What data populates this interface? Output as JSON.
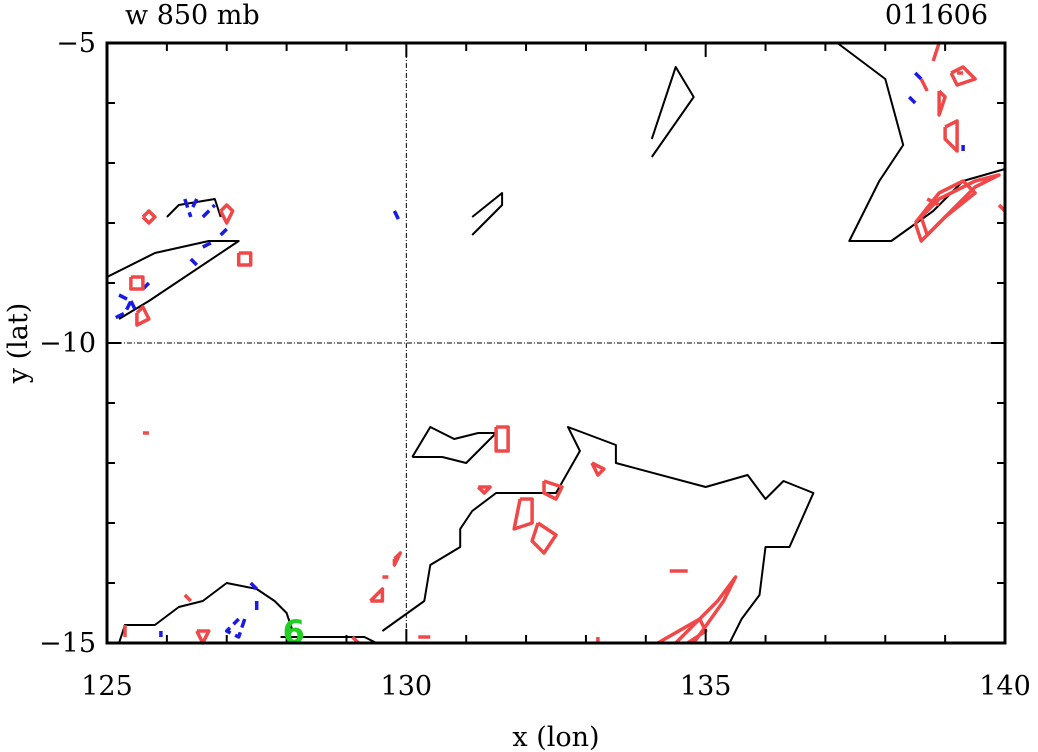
{
  "chart_data": {
    "type": "contour",
    "title_left": "w 850 mb",
    "title_right": "011606",
    "xlabel": "x (lon)",
    "ylabel": "y (lat)",
    "xlim": [
      125,
      140
    ],
    "ylim": [
      -15,
      -5
    ],
    "x_ticks": [
      125,
      130,
      135,
      140
    ],
    "y_ticks": [
      -5,
      -10,
      -15
    ],
    "x_tick_labels": [
      "125",
      "130",
      "135",
      "140"
    ],
    "y_tick_labels": [
      "−5",
      "−10",
      "−15"
    ],
    "reference_lines": {
      "lon": 130,
      "lat": -10
    },
    "colors": {
      "positive": "#f04848",
      "negative": "#1a1ae6",
      "land": "#000000",
      "marker": "#22d022"
    },
    "marker": {
      "label": "6",
      "lon": 128.1,
      "lat": -14.8
    },
    "coastlines": [
      [
        [
          137.2,
          -5
        ],
        [
          138,
          -5.6
        ],
        [
          138.3,
          -6.7
        ],
        [
          137.9,
          -7.3
        ],
        [
          137.4,
          -8.3
        ],
        [
          138.1,
          -8.3
        ],
        [
          138.8,
          -7.8
        ],
        [
          139.3,
          -7.3
        ],
        [
          140,
          -7.1
        ]
      ],
      [
        [
          134.1,
          -6.6
        ],
        [
          134.5,
          -5.4
        ],
        [
          134.8,
          -5.9
        ],
        [
          134.1,
          -6.9
        ]
      ],
      [
        [
          131.1,
          -7.9
        ],
        [
          131.6,
          -7.5
        ],
        [
          131.6,
          -7.7
        ],
        [
          131.1,
          -8.2
        ]
      ],
      [
        [
          125,
          -8.9
        ],
        [
          125.8,
          -8.5
        ],
        [
          126.7,
          -8.3
        ],
        [
          127.2,
          -8.3
        ],
        [
          125.7,
          -9.3
        ],
        [
          125.2,
          -9.6
        ]
      ],
      [
        [
          126,
          -7.9
        ],
        [
          126.2,
          -7.7
        ],
        [
          126.8,
          -7.6
        ],
        [
          126.9,
          -7.9
        ]
      ],
      [
        [
          130.1,
          -11.9
        ],
        [
          130.4,
          -11.4
        ],
        [
          130.8,
          -11.6
        ],
        [
          131.2,
          -11.5
        ],
        [
          131.5,
          -11.5
        ],
        [
          131.0,
          -12.0
        ],
        [
          130.6,
          -11.9
        ],
        [
          130.1,
          -11.9
        ]
      ],
      [
        [
          129.6,
          -14.8
        ],
        [
          130.3,
          -14.3
        ],
        [
          130.4,
          -13.7
        ],
        [
          130.9,
          -13.4
        ],
        [
          130.9,
          -13.1
        ],
        [
          131.1,
          -12.8
        ],
        [
          131.5,
          -12.5
        ],
        [
          132.5,
          -12.5
        ],
        [
          132.9,
          -11.8
        ],
        [
          132.7,
          -11.4
        ],
        [
          133.5,
          -11.7
        ],
        [
          133.5,
          -12.0
        ],
        [
          135,
          -12.4
        ],
        [
          135.7,
          -12.2
        ],
        [
          136,
          -12.6
        ],
        [
          136.3,
          -12.3
        ],
        [
          136.8,
          -12.5
        ],
        [
          136.4,
          -13.4
        ],
        [
          136.0,
          -13.4
        ],
        [
          135.9,
          -14.2
        ],
        [
          135.6,
          -14.6
        ],
        [
          135.4,
          -15
        ]
      ],
      [
        [
          125.2,
          -15
        ],
        [
          125.3,
          -14.7
        ],
        [
          125.8,
          -14.7
        ],
        [
          126.2,
          -14.4
        ],
        [
          126.6,
          -14.3
        ],
        [
          127,
          -14
        ],
        [
          127.5,
          -14.1
        ],
        [
          127.8,
          -14.3
        ],
        [
          128,
          -14.5
        ],
        [
          128.1,
          -14.8
        ]
      ],
      [
        [
          127.9,
          -14.9
        ],
        [
          128.3,
          -14.9
        ],
        [
          128.6,
          -14.9
        ],
        [
          129.0,
          -14.9
        ],
        [
          129.3,
          -14.9
        ],
        [
          129.5,
          -15
        ]
      ]
    ],
    "positive_contours": [
      [
        [
          125.6,
          -7.9
        ],
        [
          125.7,
          -7.8
        ],
        [
          125.8,
          -7.9
        ],
        [
          125.7,
          -8.0
        ],
        [
          125.6,
          -7.9
        ]
      ],
      [
        [
          126.9,
          -7.8
        ],
        [
          127.0,
          -7.7
        ],
        [
          127.1,
          -7.8
        ],
        [
          127.0,
          -8.0
        ],
        [
          126.9,
          -7.8
        ]
      ],
      [
        [
          127.2,
          -8.5
        ],
        [
          127.4,
          -8.5
        ],
        [
          127.4,
          -8.7
        ],
        [
          127.2,
          -8.7
        ],
        [
          127.2,
          -8.5
        ]
      ],
      [
        [
          125.4,
          -8.9
        ],
        [
          125.6,
          -8.9
        ],
        [
          125.6,
          -9.1
        ],
        [
          125.4,
          -9.1
        ],
        [
          125.4,
          -8.9
        ]
      ],
      [
        [
          125.5,
          -9.5
        ],
        [
          125.6,
          -9.4
        ],
        [
          125.7,
          -9.6
        ],
        [
          125.5,
          -9.7
        ],
        [
          125.5,
          -9.5
        ]
      ],
      [
        [
          125.6,
          -11.5
        ],
        [
          125.7,
          -11.5
        ]
      ],
      [
        [
          131.5,
          -11.4
        ],
        [
          131.7,
          -11.4
        ],
        [
          131.7,
          -11.8
        ],
        [
          131.5,
          -11.8
        ],
        [
          131.5,
          -11.4
        ]
      ],
      [
        [
          133.1,
          -12.0
        ],
        [
          133.3,
          -12.1
        ],
        [
          133.2,
          -12.2
        ],
        [
          133.1,
          -12.0
        ]
      ],
      [
        [
          131.2,
          -12.4
        ],
        [
          131.4,
          -12.4
        ],
        [
          131.3,
          -12.5
        ],
        [
          131.2,
          -12.4
        ]
      ],
      [
        [
          132.3,
          -12.3
        ],
        [
          132.6,
          -12.4
        ],
        [
          132.5,
          -12.6
        ],
        [
          132.3,
          -12.5
        ],
        [
          132.3,
          -12.3
        ]
      ],
      [
        [
          131.9,
          -12.6
        ],
        [
          132.1,
          -12.6
        ],
        [
          132.1,
          -13.0
        ],
        [
          131.8,
          -13.1
        ],
        [
          131.9,
          -12.6
        ]
      ],
      [
        [
          132.2,
          -13.0
        ],
        [
          132.5,
          -13.2
        ],
        [
          132.3,
          -13.5
        ],
        [
          132.1,
          -13.3
        ],
        [
          132.2,
          -13.0
        ]
      ],
      [
        [
          129.8,
          -13.6
        ],
        [
          129.9,
          -13.5
        ],
        [
          129.8,
          -13.7
        ],
        [
          129.8,
          -13.6
        ]
      ],
      [
        [
          129.4,
          -14.3
        ],
        [
          129.6,
          -14.1
        ],
        [
          129.6,
          -14.3
        ],
        [
          129.4,
          -14.3
        ]
      ],
      [
        [
          129.6,
          -13.9
        ],
        [
          129.7,
          -13.9
        ]
      ],
      [
        [
          130.2,
          -14.9
        ],
        [
          130.4,
          -14.9
        ]
      ],
      [
        [
          129.1,
          -14.9
        ],
        [
          129.2,
          -15
        ]
      ],
      [
        [
          133.2,
          -14.9
        ],
        [
          133.2,
          -15
        ]
      ],
      [
        [
          134.4,
          -13.8
        ],
        [
          134.7,
          -13.8
        ]
      ],
      [
        [
          134.5,
          -15
        ],
        [
          135.2,
          -14.3
        ],
        [
          135.5,
          -13.9
        ],
        [
          135.3,
          -14.3
        ],
        [
          134.8,
          -15
        ]
      ],
      [
        [
          134.2,
          -15
        ],
        [
          134.9,
          -14.6
        ],
        [
          135.0,
          -14.8
        ],
        [
          134.7,
          -15
        ]
      ],
      [
        [
          126.3,
          -14.2
        ],
        [
          126.4,
          -14.3
        ]
      ],
      [
        [
          126.5,
          -14.8
        ],
        [
          126.7,
          -14.8
        ],
        [
          126.6,
          -15
        ],
        [
          126.5,
          -14.8
        ]
      ],
      [
        [
          125.3,
          -14.7
        ],
        [
          125.3,
          -14.9
        ]
      ],
      [
        [
          138.8,
          -5.3
        ],
        [
          138.9,
          -5.0
        ],
        [
          138.8,
          -5.3
        ]
      ],
      [
        [
          139.1,
          -5.5
        ],
        [
          139.3,
          -5.4
        ],
        [
          139.5,
          -5.6
        ],
        [
          139.2,
          -5.7
        ],
        [
          139.1,
          -5.5
        ]
      ],
      [
        [
          139.2,
          -5.5
        ],
        [
          139.3,
          -5.5
        ]
      ],
      [
        [
          138.6,
          -5.6
        ],
        [
          138.7,
          -5.8
        ]
      ],
      [
        [
          138.9,
          -5.8
        ],
        [
          139.0,
          -5.9
        ],
        [
          138.9,
          -6.2
        ],
        [
          138.9,
          -5.8
        ]
      ],
      [
        [
          139.0,
          -6.4
        ],
        [
          139.2,
          -6.3
        ],
        [
          139.2,
          -6.8
        ],
        [
          139.0,
          -6.6
        ],
        [
          139.0,
          -6.4
        ]
      ],
      [
        [
          138.6,
          -7.9
        ],
        [
          138.9,
          -7.6
        ],
        [
          139.5,
          -7.3
        ],
        [
          139.9,
          -7.2
        ],
        [
          139.5,
          -7.4
        ],
        [
          139.0,
          -7.9
        ],
        [
          138.7,
          -8.2
        ],
        [
          138.6,
          -7.9
        ]
      ],
      [
        [
          138.5,
          -8.0
        ],
        [
          138.9,
          -7.5
        ],
        [
          139.3,
          -7.3
        ],
        [
          139.5,
          -7.5
        ],
        [
          139.0,
          -7.9
        ],
        [
          138.6,
          -8.3
        ],
        [
          138.5,
          -8.0
        ]
      ],
      [
        [
          139.9,
          -7.7
        ],
        [
          140,
          -7.8
        ]
      ],
      [
        [
          138.7,
          -7.6
        ],
        [
          138.9,
          -7.7
        ]
      ]
    ],
    "negative_contours": [
      [
        [
          126.3,
          -7.6
        ],
        [
          126.4,
          -7.9
        ]
      ],
      [
        [
          126.5,
          -7.6
        ],
        [
          126.4,
          -7.8
        ]
      ],
      [
        [
          126.6,
          -7.9
        ],
        [
          126.8,
          -7.7
        ]
      ],
      [
        [
          126.9,
          -8.2
        ],
        [
          127.0,
          -8.1
        ]
      ],
      [
        [
          126.6,
          -8.4
        ],
        [
          126.8,
          -8.3
        ]
      ],
      [
        [
          126.4,
          -8.6
        ],
        [
          126.5,
          -8.7
        ]
      ],
      [
        [
          125.7,
          -9.0
        ],
        [
          125.6,
          -9.1
        ]
      ],
      [
        [
          125.2,
          -9.2
        ],
        [
          125.4,
          -9.3
        ],
        [
          125.3,
          -9.5
        ],
        [
          125.1,
          -9.6
        ]
      ],
      [
        [
          125.4,
          -9.3
        ],
        [
          125.5,
          -9.5
        ]
      ],
      [
        [
          129.8,
          -7.8
        ],
        [
          129.9,
          -8.0
        ]
      ],
      [
        [
          138.5,
          -5.5
        ],
        [
          138.6,
          -5.6
        ]
      ],
      [
        [
          138.4,
          -5.9
        ],
        [
          138.5,
          -6.0
        ]
      ],
      [
        [
          139.3,
          -6.7
        ],
        [
          139.3,
          -6.8
        ]
      ],
      [
        [
          127.4,
          -14.0
        ],
        [
          127.5,
          -14.1
        ]
      ],
      [
        [
          127.5,
          -14.3
        ],
        [
          127.5,
          -14.5
        ]
      ],
      [
        [
          127.3,
          -14.6
        ],
        [
          127.2,
          -14.9
        ],
        [
          127.0,
          -14.8
        ],
        [
          127.2,
          -14.6
        ]
      ],
      [
        [
          125.9,
          -14.8
        ],
        [
          125.9,
          -14.9
        ]
      ]
    ]
  }
}
